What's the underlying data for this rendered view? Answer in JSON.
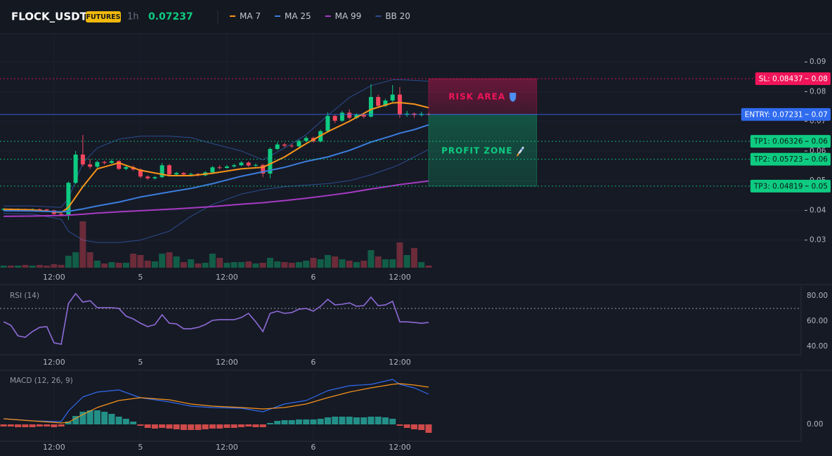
{
  "header": {
    "symbol": "FLOCK_USDT",
    "badge": "FUTURES",
    "interval": "1h",
    "price": 0.07237
  },
  "chart_data": [
    {
      "type": "candlestick",
      "x": [
        5,
        6,
        7,
        8,
        9,
        10,
        11,
        12,
        13,
        14,
        15,
        16,
        17,
        18,
        19,
        20,
        21,
        22,
        23,
        24,
        25,
        26,
        27,
        28,
        29,
        30,
        31,
        32,
        33,
        34,
        35,
        36,
        37,
        38,
        39,
        40,
        41,
        42,
        43,
        44,
        45,
        46,
        47,
        48,
        49,
        50,
        51,
        52,
        53,
        54,
        55,
        56,
        57,
        58,
        59,
        60,
        61,
        62,
        63,
        64
      ],
      "open": [
        0.0402,
        0.0405,
        0.0403,
        0.0404,
        0.0402,
        0.0404,
        0.0403,
        0.04,
        0.0388,
        0.0385,
        0.0493,
        0.0588,
        0.0555,
        0.0547,
        0.0563,
        0.056,
        0.0566,
        0.054,
        0.0546,
        0.0538,
        0.0514,
        0.0508,
        0.0512,
        0.0552,
        0.0521,
        0.0526,
        0.0521,
        0.0523,
        0.0518,
        0.0528,
        0.0545,
        0.0543,
        0.0548,
        0.0552,
        0.0561,
        0.0551,
        0.0553,
        0.0524,
        0.0607,
        0.0622,
        0.0618,
        0.0616,
        0.0634,
        0.0644,
        0.0632,
        0.0667,
        0.0718,
        0.0702,
        0.0729,
        0.0712,
        0.0722,
        0.0716,
        0.0782,
        0.0752,
        0.077,
        0.079,
        0.0722,
        0.0726,
        0.0721,
        0.0725
      ],
      "high": [
        0.0408,
        0.0407,
        0.0407,
        0.0406,
        0.0407,
        0.0406,
        0.0405,
        0.0402,
        0.0392,
        0.0497,
        0.06,
        0.0654,
        0.0573,
        0.0568,
        0.0567,
        0.0572,
        0.0569,
        0.055,
        0.0551,
        0.0541,
        0.0518,
        0.0516,
        0.056,
        0.0556,
        0.053,
        0.0529,
        0.0527,
        0.0526,
        0.0532,
        0.055,
        0.0552,
        0.0553,
        0.0557,
        0.0566,
        0.0565,
        0.0558,
        0.0556,
        0.0612,
        0.063,
        0.0627,
        0.0624,
        0.0638,
        0.065,
        0.0648,
        0.0672,
        0.073,
        0.0724,
        0.0735,
        0.074,
        0.0727,
        0.0728,
        0.0825,
        0.079,
        0.0776,
        0.0822,
        0.0815,
        0.0735,
        0.073,
        0.0732,
        0.0729
      ],
      "low": [
        0.0399,
        0.04,
        0.0401,
        0.0399,
        0.04,
        0.04,
        0.0397,
        0.0384,
        0.038,
        0.0368,
        0.0488,
        0.0548,
        0.054,
        0.0543,
        0.0555,
        0.0557,
        0.0536,
        0.0535,
        0.0533,
        0.0508,
        0.0503,
        0.0504,
        0.0509,
        0.0517,
        0.0518,
        0.0517,
        0.0518,
        0.0514,
        0.0515,
        0.0525,
        0.0538,
        0.054,
        0.0544,
        0.0549,
        0.0547,
        0.0546,
        0.0512,
        0.0508,
        0.0603,
        0.0612,
        0.0611,
        0.0613,
        0.063,
        0.0628,
        0.0629,
        0.0662,
        0.0694,
        0.0698,
        0.0706,
        0.0708,
        0.071,
        0.0712,
        0.0745,
        0.0748,
        0.076,
        0.0712,
        0.0715,
        0.0712,
        0.0716,
        0.0719
      ],
      "close": [
        0.0405,
        0.0403,
        0.0404,
        0.0402,
        0.0404,
        0.0403,
        0.04,
        0.0388,
        0.0385,
        0.0493,
        0.0588,
        0.0555,
        0.0547,
        0.0563,
        0.056,
        0.0566,
        0.054,
        0.0546,
        0.0538,
        0.0514,
        0.0508,
        0.0512,
        0.0552,
        0.0521,
        0.0526,
        0.0521,
        0.0523,
        0.0518,
        0.0528,
        0.0545,
        0.0543,
        0.0548,
        0.0552,
        0.0561,
        0.0551,
        0.0553,
        0.0524,
        0.0607,
        0.0622,
        0.0618,
        0.0616,
        0.0634,
        0.0644,
        0.0632,
        0.0667,
        0.0718,
        0.0702,
        0.0729,
        0.0712,
        0.0722,
        0.0716,
        0.0782,
        0.0752,
        0.077,
        0.079,
        0.0722,
        0.0726,
        0.0721,
        0.0725,
        0.07237
      ],
      "volume": [
        3,
        3,
        3,
        4,
        3,
        4,
        3,
        5,
        4,
        17,
        22,
        66,
        22,
        10,
        6,
        8,
        7,
        7,
        20,
        18,
        10,
        9,
        20,
        22,
        16,
        8,
        12,
        6,
        7,
        20,
        14,
        7,
        8,
        8,
        9,
        6,
        7,
        14,
        9,
        8,
        7,
        8,
        10,
        14,
        12,
        18,
        16,
        12,
        10,
        8,
        10,
        25,
        16,
        12,
        12,
        36,
        18,
        28,
        8,
        3
      ],
      "up_color": "#0ecb81",
      "down_color": "#f6465d",
      "series": [
        {
          "name": "MA 7",
          "color": "#f7931a",
          "x": [
            5,
            9,
            13,
            14,
            16,
            18,
            21,
            24,
            28,
            31,
            34,
            38,
            41,
            44,
            47,
            50,
            53,
            56,
            59,
            60,
            62,
            64
          ],
          "values": [
            0.0404,
            0.0402,
            0.0393,
            0.041,
            0.048,
            0.054,
            0.056,
            0.0535,
            0.0517,
            0.0517,
            0.0525,
            0.054,
            0.0545,
            0.058,
            0.0625,
            0.0665,
            0.07,
            0.074,
            0.0762,
            0.0763,
            0.0758,
            0.0746
          ]
        },
        {
          "name": "MA 25",
          "color": "#3b7ddd",
          "x": [
            5,
            9,
            13,
            14,
            16,
            18,
            21,
            24,
            28,
            31,
            34,
            38,
            41,
            44,
            47,
            50,
            53,
            56,
            59,
            60,
            62,
            64
          ],
          "values": [
            0.0399,
            0.0398,
            0.0395,
            0.0397,
            0.0405,
            0.0415,
            0.0428,
            0.0445,
            0.0462,
            0.0474,
            0.049,
            0.0515,
            0.053,
            0.0545,
            0.0565,
            0.058,
            0.0602,
            0.063,
            0.0652,
            0.066,
            0.0672,
            0.0688
          ]
        },
        {
          "name": "MA 99",
          "color": "#a63bc4",
          "x": [
            5,
            9,
            13,
            14,
            16,
            18,
            21,
            24,
            28,
            31,
            34,
            38,
            41,
            44,
            47,
            50,
            53,
            56,
            59,
            60,
            62,
            64
          ],
          "values": [
            0.038,
            0.0381,
            0.0383,
            0.0384,
            0.0387,
            0.0391,
            0.0395,
            0.0399,
            0.0404,
            0.0408,
            0.0413,
            0.0421,
            0.0426,
            0.0433,
            0.0441,
            0.045,
            0.046,
            0.0472,
            0.0483,
            0.0487,
            0.0493,
            0.0499
          ]
        },
        {
          "name": "BB 20",
          "color": "#2b4d8f",
          "x": [
            5,
            9,
            13,
            14,
            16,
            18,
            21,
            24,
            28,
            31,
            34,
            38,
            41,
            44,
            47,
            50,
            53,
            56,
            59,
            60,
            62,
            64
          ],
          "upper": [
            0.0415,
            0.0415,
            0.041,
            0.044,
            0.056,
            0.061,
            0.064,
            0.065,
            0.065,
            0.0645,
            0.0625,
            0.06,
            0.057,
            0.061,
            0.0655,
            0.072,
            0.078,
            0.082,
            0.084,
            0.084,
            0.0838,
            0.0835
          ],
          "lower": [
            0.039,
            0.0388,
            0.037,
            0.033,
            0.03,
            0.0292,
            0.0292,
            0.03,
            0.033,
            0.038,
            0.042,
            0.0455,
            0.047,
            0.048,
            0.0485,
            0.049,
            0.05,
            0.052,
            0.0545,
            0.0555,
            0.058,
            0.0605
          ]
        }
      ],
      "levels": [
        {
          "label": "SL: 0.08437",
          "value": 0.08437,
          "axis_label": "0.08",
          "color": "#f0145a",
          "text_color": "#ffffff",
          "style": "dotted"
        },
        {
          "label": "ENTRY: 0.07231",
          "value": 0.07231,
          "axis_label": "0.07",
          "color": "#2f6bef",
          "text_color": "#ffffff",
          "style": "solid"
        },
        {
          "label": "TP1: 0.06326",
          "value": 0.06326,
          "axis_label": "0.06",
          "color": "#0ecb81",
          "text_color": "#0b1a14",
          "style": "dotted"
        },
        {
          "label": "TP2: 0.05723",
          "value": 0.05723,
          "axis_label": "0.06",
          "color": "#0ecb81",
          "text_color": "#0b1a14",
          "style": "dotted"
        },
        {
          "label": "TP3: 0.04819",
          "value": 0.04819,
          "axis_label": "0.05",
          "color": "#0ecb81",
          "text_color": "#0b1a14",
          "style": "dotted"
        }
      ],
      "zones": [
        {
          "label": "RISK AREA",
          "x": [
            64,
            79
          ],
          "from": 0.08437,
          "to": 0.07231,
          "color": "#f0145a",
          "icon": "shield"
        },
        {
          "label": "PROFIT ZONE",
          "x": [
            64,
            79
          ],
          "from": 0.07231,
          "to": 0.04819,
          "color": "#0ecb81",
          "icon": "rocket"
        }
      ],
      "xlim": [
        4.5,
        116
      ],
      "ylim": [
        0.0207,
        0.0995
      ],
      "xticks": [
        {
          "value": 12,
          "label": "12:00"
        },
        {
          "value": 24,
          "label": "5"
        },
        {
          "value": 36,
          "label": "12:00"
        },
        {
          "value": 48,
          "label": "6"
        },
        {
          "value": 60,
          "label": "12:00"
        }
      ],
      "yticks": [
        0.03,
        0.04,
        0.05,
        0.06,
        0.07,
        0.08,
        0.09
      ],
      "grid": true
    },
    {
      "type": "line",
      "title": "RSI (14)",
      "color": "#8e6bd8",
      "x": [
        5,
        6,
        7,
        8,
        9,
        10,
        11,
        12,
        13,
        14,
        15,
        16,
        17,
        18,
        19,
        20,
        21,
        22,
        23,
        24,
        25,
        26,
        27,
        28,
        29,
        30,
        31,
        32,
        33,
        34,
        35,
        36,
        37,
        38,
        39,
        40,
        41,
        42,
        43,
        44,
        45,
        46,
        47,
        48,
        49,
        50,
        51,
        52,
        53,
        54,
        55,
        56,
        57,
        58,
        59,
        60,
        61,
        62,
        63,
        64
      ],
      "values": [
        59.4,
        56.7,
        48.3,
        47.2,
        51.7,
        55,
        55.6,
        42.8,
        41.7,
        73.9,
        81.7,
        75,
        76.1,
        70.6,
        70.6,
        70.6,
        70,
        63.9,
        61.7,
        58.3,
        55.6,
        57.2,
        65,
        58.3,
        57.8,
        53.9,
        53.9,
        55,
        57.2,
        60.6,
        61.1,
        61.1,
        61.1,
        62.8,
        66.1,
        59.4,
        51.7,
        66.1,
        67.8,
        66.1,
        66.7,
        69.4,
        70,
        67.8,
        71.7,
        77.2,
        72.8,
        73.3,
        74.4,
        71.7,
        72.2,
        78.9,
        72.2,
        72.8,
        75.6,
        59.4,
        59.4,
        58.9,
        58.3,
        58.9
      ],
      "reference_line": 70,
      "xlim": [
        4.5,
        116
      ],
      "ylim": [
        33.3,
        87.2
      ],
      "xticks": [
        {
          "value": 12,
          "label": "12:00"
        },
        {
          "value": 24,
          "label": "5"
        },
        {
          "value": 36,
          "label": "12:00"
        },
        {
          "value": 48,
          "label": "6"
        },
        {
          "value": 60,
          "label": "12:00"
        }
      ],
      "yticks": [
        {
          "value": 40,
          "label": "40.00"
        },
        {
          "value": 60,
          "label": "60.00"
        },
        {
          "value": 80,
          "label": "80.00"
        }
      ]
    },
    {
      "type": "macd",
      "title": "MACD (12, 26, 9)",
      "x": [
        5,
        6,
        7,
        8,
        9,
        10,
        11,
        12,
        13,
        14,
        15,
        16,
        17,
        18,
        19,
        20,
        21,
        22,
        23,
        24,
        25,
        26,
        27,
        28,
        29,
        30,
        31,
        32,
        33,
        34,
        35,
        36,
        37,
        38,
        39,
        40,
        41,
        42,
        43,
        44,
        45,
        46,
        47,
        48,
        49,
        50,
        51,
        52,
        53,
        54,
        55,
        56,
        57,
        58,
        59,
        60,
        61,
        62,
        63,
        64
      ],
      "histogram": [
        -3e-05,
        -3e-05,
        -4e-05,
        -4e-05,
        -4e-05,
        -3e-05,
        -3e-05,
        -4e-05,
        -3e-05,
        4e-05,
        0.00012,
        0.00018,
        0.0002,
        0.0002,
        0.00018,
        0.00015,
        0.00011,
        8e-05,
        4e-05,
        -2e-05,
        -5e-05,
        -6e-05,
        -5e-05,
        -6e-05,
        -7e-05,
        -8e-05,
        -8e-05,
        -8e-05,
        -7e-05,
        -6e-05,
        -6e-05,
        -5e-05,
        -5e-05,
        -4e-05,
        -3e-05,
        -4e-05,
        -4e-05,
        2e-05,
        5e-05,
        6e-05,
        6e-05,
        7e-05,
        7e-05,
        7e-05,
        8e-05,
        0.0001,
        0.00011,
        0.00011,
        0.00011,
        0.0001,
        0.0001,
        0.00011,
        0.00011,
        0.0001,
        8e-05,
        -2e-05,
        -5e-05,
        -7e-05,
        -8e-05,
        -0.00012
      ],
      "up_color": "#26a69a",
      "down_color": "#ef5350",
      "series": [
        {
          "color": "#2f6bef",
          "x": [
            5,
            9,
            13,
            14,
            16,
            18,
            21,
            24,
            28,
            31,
            34,
            38,
            41,
            44,
            47,
            50,
            53,
            56,
            59,
            60,
            62,
            64
          ],
          "values": [
            8e-05,
            5e-05,
            4e-05,
            0.00019,
            0.00039,
            0.00046,
            0.00049,
            0.00038,
            0.00032,
            0.00026,
            0.00024,
            0.00023,
            0.00018,
            0.00029,
            0.00034,
            0.00048,
            0.00055,
            0.00057,
            0.00064,
            0.00057,
            0.00052,
            0.00043
          ]
        },
        {
          "color": "#f7931a",
          "x": [
            5,
            9,
            13,
            14,
            16,
            18,
            21,
            24,
            28,
            31,
            34,
            38,
            41,
            44,
            47,
            50,
            53,
            56,
            59,
            60,
            62,
            64
          ],
          "values": [
            8e-05,
            5e-05,
            2e-05,
            3e-05,
            0.00014,
            0.00024,
            0.00034,
            0.00038,
            0.00035,
            0.00029,
            0.00026,
            0.00024,
            0.00022,
            0.00024,
            0.00029,
            0.00038,
            0.00046,
            0.00052,
            0.00057,
            0.00058,
            0.00056,
            0.00053
          ]
        }
      ],
      "xlim": [
        4.5,
        116
      ],
      "ylim": [
        -0.00024,
        0.00074
      ],
      "xticks": [
        {
          "value": 12,
          "label": "12:00"
        },
        {
          "value": 24,
          "label": "5"
        },
        {
          "value": 36,
          "label": "12:00"
        },
        {
          "value": 48,
          "label": "6"
        },
        {
          "value": 60,
          "label": "12:00"
        }
      ],
      "yticks": [
        {
          "value": 0,
          "label": "0.00"
        }
      ]
    }
  ]
}
